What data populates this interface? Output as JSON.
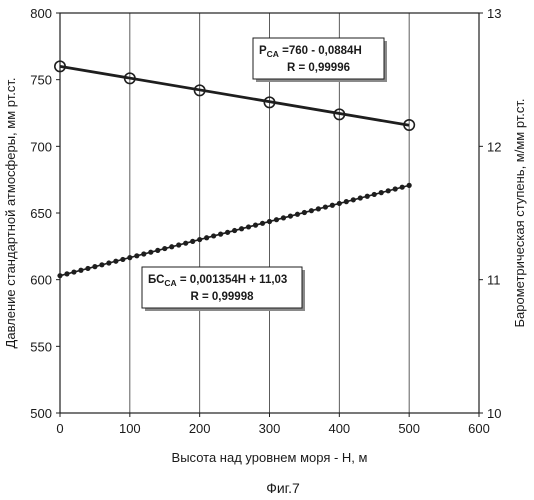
{
  "figure": {
    "caption": "Фиг.7"
  },
  "chart_data": {
    "type": "scatter",
    "xlabel": "Высота над уровнем моря - H, м",
    "ylabel_left": "Давление стандартной атмосферы, мм рт.ст.",
    "ylabel_right": "Барометрическая ступень, м/мм рт.ст.",
    "x_ticks": [
      "0",
      "100",
      "200",
      "300",
      "400",
      "500",
      "600"
    ],
    "y_left_ticks": [
      "500",
      "550",
      "600",
      "650",
      "700",
      "750",
      "800"
    ],
    "y_right_ticks": [
      "10",
      "11",
      "12",
      "13"
    ],
    "xlim": [
      0,
      600
    ],
    "ylim_left": [
      500,
      800
    ],
    "ylim_right": [
      10,
      13
    ],
    "grid": "vertical",
    "series": [
      {
        "key": "pressure",
        "axis": "left",
        "marker": "open-circle",
        "x": [
          0,
          100,
          200,
          300,
          400,
          500
        ],
        "y": [
          760,
          751,
          742,
          733,
          724,
          716
        ],
        "fit": {
          "x": [
            0,
            500
          ],
          "y": [
            760,
            715.8
          ]
        },
        "annotation": {
          "main": "P",
          "sub": "CA",
          "rest": " =760 - 0,0884H",
          "r": "R = 0,99996"
        }
      },
      {
        "key": "barometric_step",
        "axis": "right",
        "marker": "filled-dot",
        "x_start": 0,
        "x_end": 500,
        "x_step": 10,
        "fit": {
          "slope": 0.001354,
          "intercept": 11.03
        },
        "annotation": {
          "main": "БС",
          "sub": "CA",
          "rest": " = 0,001354H + 11,03",
          "r": "R = 0,99998"
        }
      }
    ],
    "colors": {
      "line": "#1e1e1e",
      "grid": "#4a4a4a",
      "box_shadow": "#8a8a8a"
    }
  }
}
